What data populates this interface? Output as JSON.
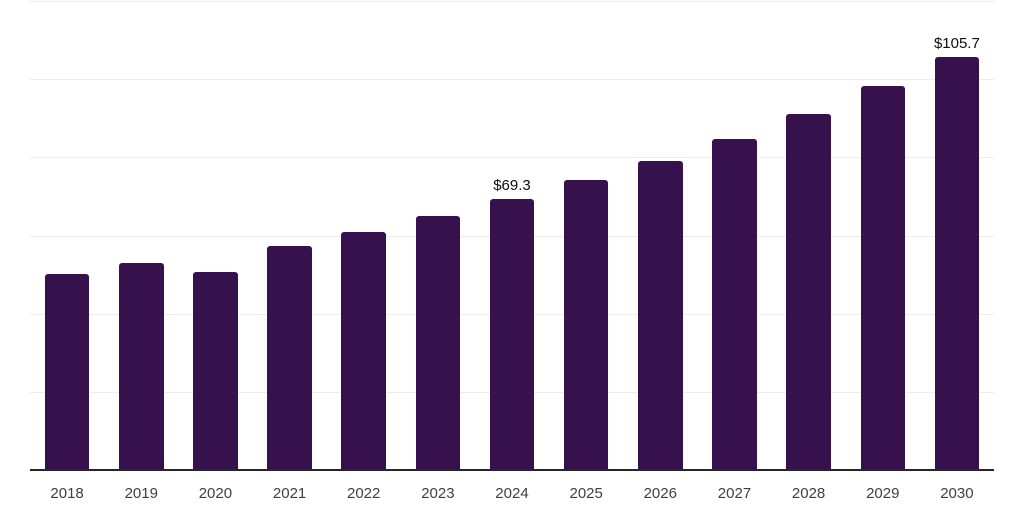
{
  "chart_data": {
    "type": "bar",
    "title": "",
    "xlabel": "",
    "ylabel": "",
    "categories": [
      "2018",
      "2019",
      "2020",
      "2021",
      "2022",
      "2023",
      "2024",
      "2025",
      "2026",
      "2027",
      "2028",
      "2029",
      "2030"
    ],
    "values": [
      50.1,
      53.0,
      50.8,
      57.4,
      61.0,
      65.0,
      69.3,
      74.1,
      79.2,
      84.8,
      91.2,
      98.3,
      105.7
    ],
    "annotations": [
      {
        "category": "2024",
        "text": "$69.3"
      },
      {
        "category": "2030",
        "text": "$105.7"
      }
    ],
    "ylim": [
      0,
      120
    ],
    "grid": true,
    "grid_step": 20,
    "y_tick_labels_shown": false,
    "legend": false,
    "colors": {
      "bar": "#36114e",
      "gridline": "#ececec",
      "axis_line": "#262626",
      "tick_label": "#404040",
      "data_label": "#0d0d0d",
      "background": "#ffffff"
    }
  }
}
